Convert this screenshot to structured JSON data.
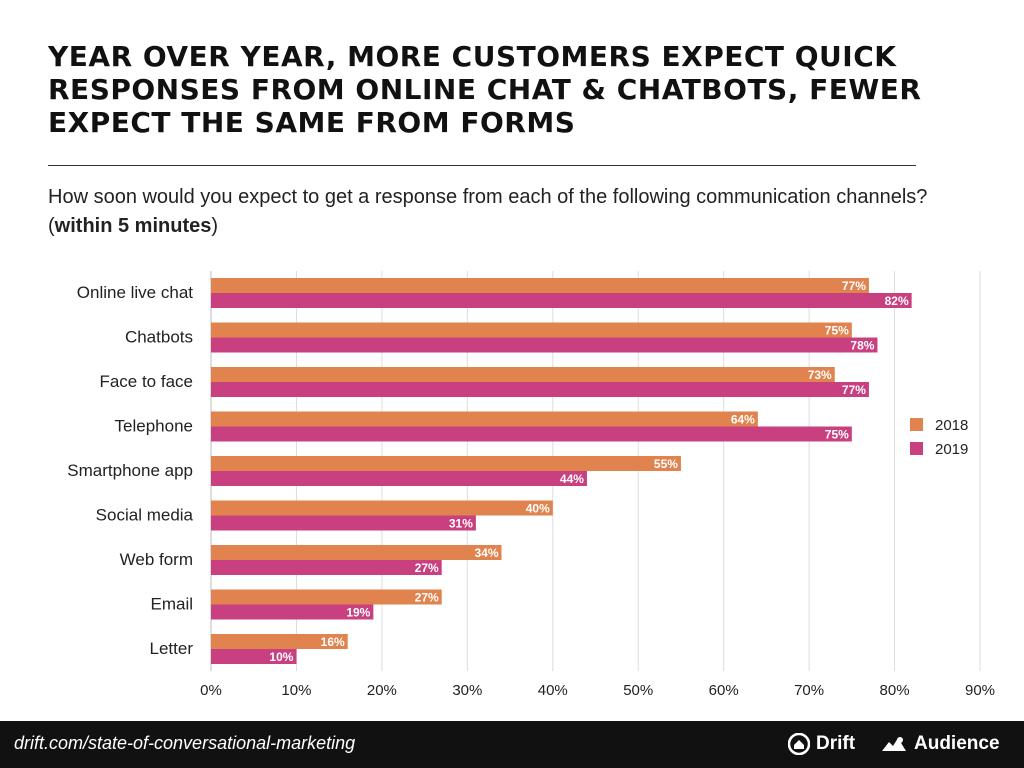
{
  "title": "YEAR OVER YEAR, MORE CUSTOMERS EXPECT QUICK RESPONSES FROM ONLINE CHAT & CHATBOTS, FEWER EXPECT THE SAME FROM FORMS",
  "subtitle": {
    "question": "How soon would you expect to get a response from each of the following communication channels? (",
    "emphasis": "within 5 minutes",
    "suffix": ")"
  },
  "chart_data": {
    "type": "bar",
    "orientation": "horizontal",
    "categories": [
      "Online live chat",
      "Chatbots",
      "Face to face",
      "Telephone",
      "Smartphone app",
      "Social media",
      "Web form",
      "Email",
      "Letter"
    ],
    "series": [
      {
        "name": "2018",
        "color": "#E0834E",
        "values": [
          77,
          75,
          73,
          64,
          55,
          40,
          34,
          27,
          16
        ]
      },
      {
        "name": "2019",
        "color": "#C8407F",
        "values": [
          82,
          78,
          77,
          75,
          44,
          31,
          27,
          19,
          10
        ]
      }
    ],
    "value_suffix": "%",
    "xlim": [
      0,
      90
    ],
    "xticks": [
      0,
      10,
      20,
      30,
      40,
      50,
      60,
      70,
      80,
      90
    ],
    "xtick_labels": [
      "0%",
      "10%",
      "20%",
      "30%",
      "40%",
      "50%",
      "60%",
      "70%",
      "80%",
      "90%"
    ],
    "grid": true,
    "legend_position": "right"
  },
  "footer": {
    "url": "drift.com/state-of-conversational-marketing",
    "brands": [
      "Drift",
      "Audience"
    ],
    "drift_icon": "drift-logo-icon",
    "audience_icon": "audience-logo-icon"
  }
}
